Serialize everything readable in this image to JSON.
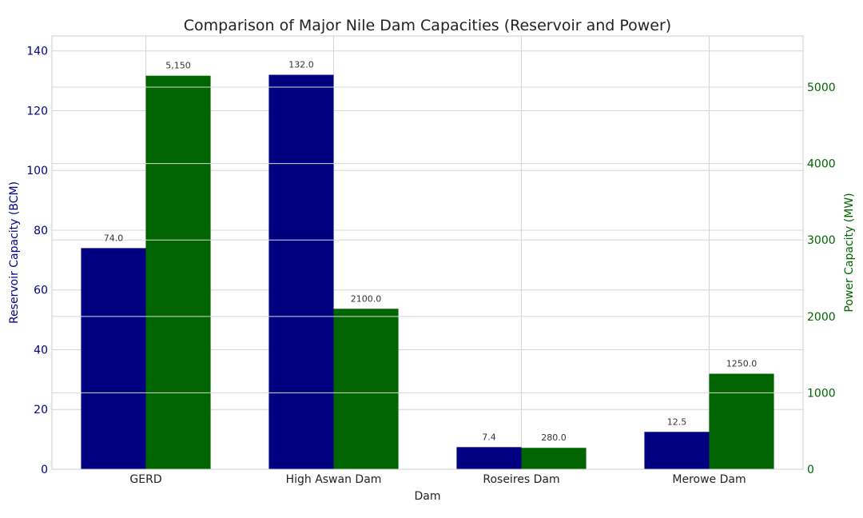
{
  "chart_data": {
    "type": "bar",
    "title": "Comparison of Major Nile Dam Capacities (Reservoir and Power)",
    "xlabel": "Dam",
    "categories": [
      "GERD",
      "High Aswan Dam",
      "Roseires Dam",
      "Merowe Dam"
    ],
    "series": [
      {
        "name": "",
        "axis": "left",
        "color": "#000080",
        "values": [
          74.0,
          132.0,
          7.4,
          12.5
        ],
        "labels": [
          "74.0",
          "132.0",
          "7.4",
          "12.5"
        ]
      },
      {
        "name": "",
        "axis": "right",
        "color": "#006400",
        "values": [
          5150,
          2100,
          280,
          1250
        ],
        "labels": [
          "5,150",
          "2100.0",
          "280.0",
          "1250.0"
        ]
      }
    ],
    "y_left": {
      "label": "Reservoir Capacity (BCM)",
      "ylim": [
        0,
        145
      ],
      "ticks": [
        0,
        20,
        40,
        60,
        80,
        100,
        120,
        140
      ]
    },
    "y_right": {
      "label": "Power Capacity (MW)",
      "ylim": [
        0,
        5670
      ],
      "ticks": [
        0,
        1000,
        2000,
        3000,
        4000,
        5000
      ]
    },
    "grid": true,
    "legend": "none"
  }
}
